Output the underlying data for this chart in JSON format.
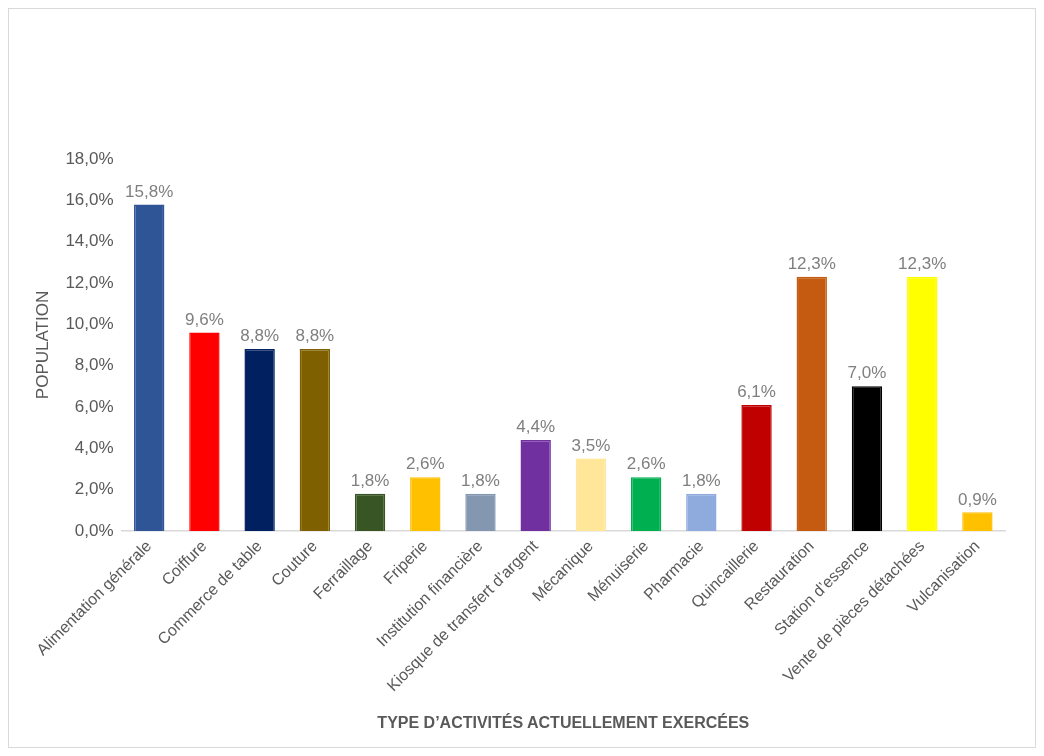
{
  "chart_data": {
    "type": "bar",
    "xlabel": "TYPE D’ACTIVITÉS ACTUELLEMENT EXERCÉES",
    "ylabel": "POPULATION",
    "categories": [
      "Alimentation générale",
      "Coiffure",
      "Commerce de table",
      "Couture",
      "Ferraillage",
      "Friperie",
      "Institution financière",
      "Kiosque de transfert d’argent",
      "Mécanique",
      "Ménuiserie",
      "Pharmacie",
      "Quincaillerie",
      "Restauration",
      "Station d’essence",
      "Vente de pièces détachées",
      "Vulcanisation"
    ],
    "values": [
      15.8,
      9.6,
      8.8,
      8.8,
      1.8,
      2.6,
      1.8,
      4.4,
      3.5,
      2.6,
      1.8,
      6.1,
      12.3,
      7.0,
      12.3,
      0.9
    ],
    "value_labels": [
      "15,8%",
      "9,6%",
      "8,8%",
      "8,8%",
      "1,8%",
      "2,6%",
      "1,8%",
      "4,4%",
      "3,5%",
      "2,6%",
      "1,8%",
      "6,1%",
      "12,3%",
      "7,0%",
      "12,3%",
      "0,9%"
    ],
    "colors": [
      "#2f5597",
      "#ff0000",
      "#002060",
      "#7f6000",
      "#375623",
      "#ffc000",
      "#8497b0",
      "#7030a0",
      "#ffe699",
      "#00b050",
      "#8faadc",
      "#c00000",
      "#c55a11",
      "#000000",
      "#ffff00",
      "#ffc000"
    ],
    "ylim": [
      0,
      18
    ],
    "yticks": [
      {
        "value": 0,
        "label": "0,0%"
      },
      {
        "value": 2,
        "label": "2,0%"
      },
      {
        "value": 4,
        "label": "4,0%"
      },
      {
        "value": 6,
        "label": "6,0%"
      },
      {
        "value": 8,
        "label": "8,0%"
      },
      {
        "value": 10,
        "label": "10,0%"
      },
      {
        "value": 12,
        "label": "12,0%"
      },
      {
        "value": 14,
        "label": "14,0%"
      },
      {
        "value": 16,
        "label": "16,0%"
      },
      {
        "value": 18,
        "label": "18,0%"
      }
    ],
    "grid": false,
    "legend": false
  }
}
